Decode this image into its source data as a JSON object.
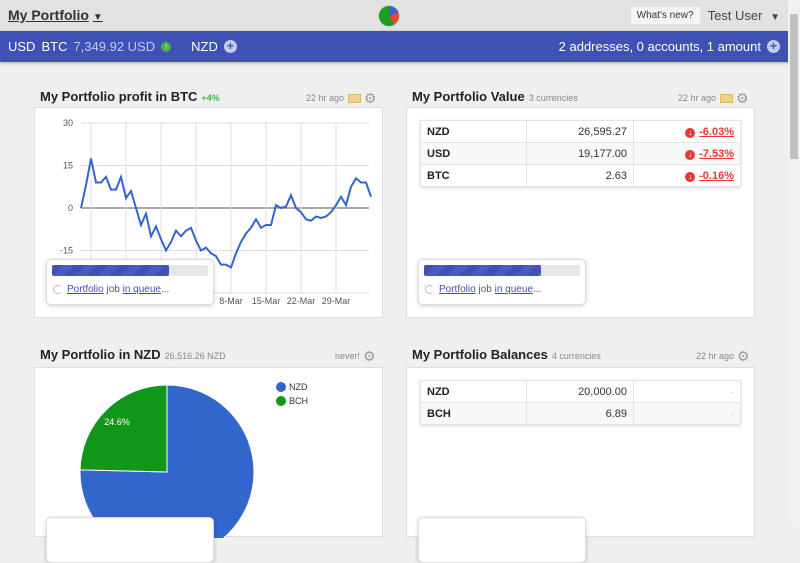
{
  "header": {
    "portfolio": "My Portfolio",
    "whats_new": "What's new?",
    "user": "Test User"
  },
  "currency_bar": {
    "usd": "USD",
    "btc": "BTC",
    "btc_price": "7,349.92 USD",
    "nzd": "NZD",
    "summary": "2 addresses, 0 accounts, 1 amount"
  },
  "profit": {
    "title": "My Portfolio profit in BTC",
    "change": "+4%",
    "updated": "22 hr ago"
  },
  "value": {
    "title": "My Portfolio Value",
    "sub": "3 currencies",
    "updated": "22 hr ago",
    "rows": [
      {
        "cur": "NZD",
        "val": "26,595.27",
        "pct": "-6.03%"
      },
      {
        "cur": "USD",
        "val": "19,177.00",
        "pct": "-7.53%"
      },
      {
        "cur": "BTC",
        "val": "2.63",
        "pct": "-0.16%"
      }
    ]
  },
  "nzd": {
    "title": "My Portfolio in NZD",
    "sub": "26,516.26 NZD",
    "updated": "never!"
  },
  "balances": {
    "title": "My Portfolio Balances",
    "sub": "4 currencies",
    "updated": "22 hr ago",
    "rows": [
      {
        "cur": "NZD",
        "val": "20,000.00",
        "extra": "-"
      },
      {
        "cur": "BCH",
        "val": "6.89",
        "extra": "-"
      }
    ]
  },
  "job": {
    "link1": "Portfolio",
    "mid": " job ",
    "link2": "in queue",
    "dots": "...",
    "progress": 0.75
  },
  "chart_data": [
    {
      "type": "line",
      "title": "My Portfolio profit in BTC",
      "ylim": [
        -30,
        30
      ],
      "yticks": [
        "30",
        "15",
        "0",
        "-15"
      ],
      "xticks": [
        "8-Mar",
        "15-Mar",
        "22-Mar",
        "29-Mar"
      ],
      "xtick_day_index": [
        30,
        37,
        44,
        51
      ],
      "values": [
        0,
        8,
        17.5,
        9,
        9,
        11,
        6.5,
        6.5,
        11,
        3.5,
        6,
        0,
        -6,
        -2,
        -10,
        -6.5,
        -11,
        -15,
        -12,
        -8,
        -10,
        -8,
        -7,
        -11.5,
        -15,
        -14,
        -16,
        -17,
        -20,
        -20,
        -21,
        -16,
        -12,
        -9,
        -7,
        -4,
        -7,
        -6,
        -6,
        1,
        0,
        0.5,
        4.5,
        0,
        -1.5,
        -4,
        -4.5,
        -3,
        -3.5,
        -3,
        -1.5,
        1,
        4,
        1,
        7.5,
        10.5,
        9,
        9,
        4
      ]
    },
    {
      "type": "pie",
      "labels": [
        "NZD",
        "BCH"
      ],
      "values": [
        75.4,
        24.6
      ],
      "slice_label": "24.6%",
      "colors": [
        "#3366cc",
        "#109618"
      ]
    }
  ]
}
